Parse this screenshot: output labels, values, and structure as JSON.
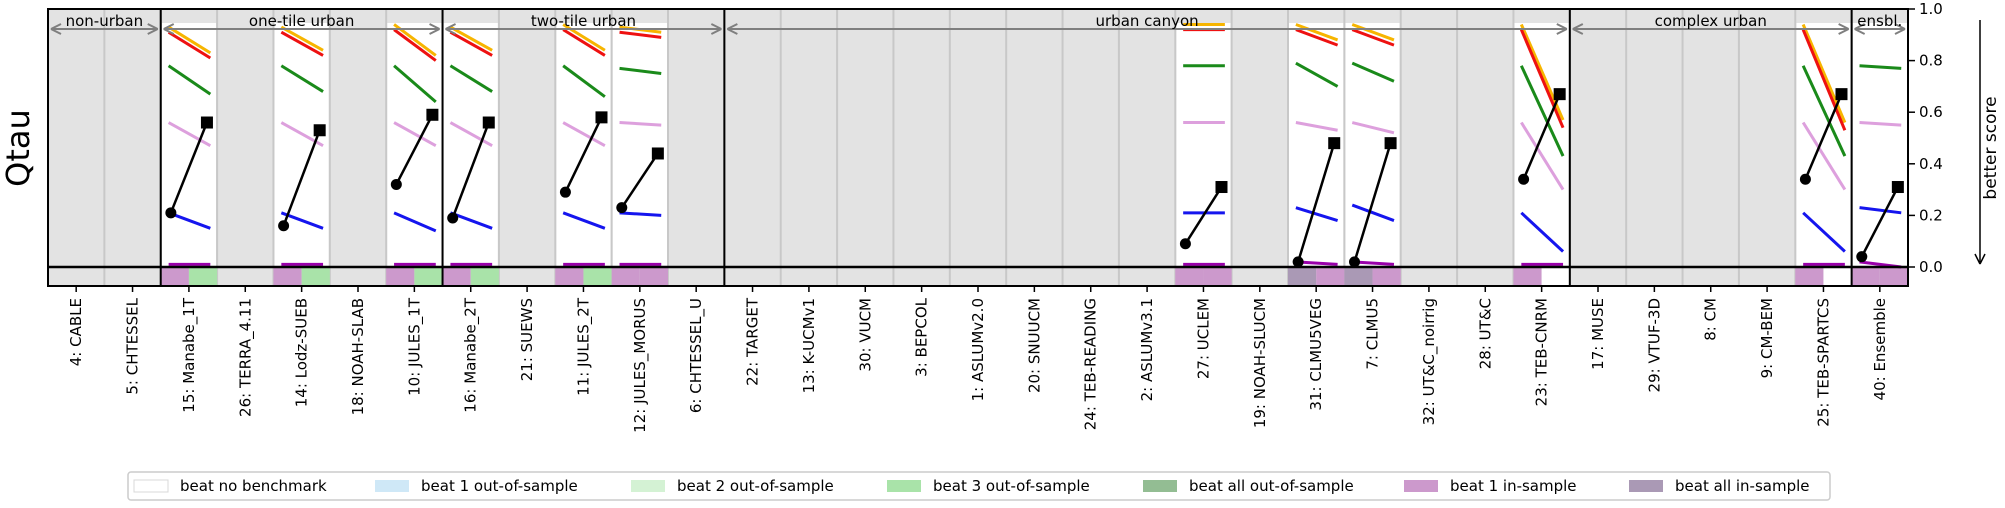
{
  "chart_data": {
    "type": "line",
    "ylabel": "Qtau",
    "right_axis_label": "better score",
    "ylim": [
      -0.08,
      1.0
    ],
    "yticks": [
      "1.0",
      "0.8",
      "0.6",
      "0.4",
      "0.2",
      "0.0"
    ],
    "yticks_values": [
      1.0,
      0.8,
      0.6,
      0.4,
      0.2,
      0.0
    ],
    "groups": [
      {
        "label": "non-urban",
        "start": 0,
        "end": 2
      },
      {
        "label": "one-tile urban",
        "start": 2,
        "end": 7
      },
      {
        "label": "two-tile urban",
        "start": 7,
        "end": 12
      },
      {
        "label": "urban canyon",
        "start": 12,
        "end": 27
      },
      {
        "label": "complex urban",
        "start": 27,
        "end": 32
      },
      {
        "label": "ensbl.",
        "start": 32,
        "end": 33
      }
    ],
    "models": [
      "4: CABLE",
      "5: CHTESSEL",
      "15: Manabe_1T",
      "26: TERRA_4.11",
      "14: Lodz-SUEB",
      "18: NOAH-SLAB",
      "10: JULES_1T",
      "16: Manabe_2T",
      "21: SUEWS",
      "11: JULES_2T",
      "12: JULES_MORUS",
      "6: CHTESSEL_U",
      "22: TARGET",
      "13: K-UCMv1",
      "30: VUCM",
      "3: BEPCOL",
      "1: ASLUMv2.0",
      "20: SNUUCM",
      "24: TEB-READING",
      "2: ASLUMv3.1",
      "27: UCLEM",
      "19: NOAH-SLUCM",
      "31: CLMU5VEG",
      "7: CLMU5",
      "32: UT&C_noirrig",
      "28: UT&C",
      "23: TEB-CNRM",
      "17: MUSE",
      "29: VTUF-3D",
      "8: CM",
      "9: CM-BEM",
      "25: TEB-SPARTCS",
      "40: Ensemble"
    ],
    "highlighted_model_indices": [
      2,
      4,
      6,
      7,
      9,
      10,
      20,
      22,
      23,
      26,
      31,
      32
    ],
    "benchmark_lines": [
      {
        "model_index": 2,
        "lines": [
          {
            "color": "#f7b500",
            "y1": 0.93,
            "y2": 0.83
          },
          {
            "color": "#ee1111",
            "y1": 0.91,
            "y2": 0.81
          },
          {
            "color": "#1a8a1a",
            "y1": 0.78,
            "y2": 0.67
          },
          {
            "color": "#dda0dd",
            "y1": 0.56,
            "y2": 0.47
          },
          {
            "color": "#1515ee",
            "y1": 0.21,
            "y2": 0.15
          },
          {
            "color": "#9900aa",
            "y1": 0.01,
            "y2": 0.01
          }
        ]
      },
      {
        "model_index": 4,
        "lines": [
          {
            "color": "#f7b500",
            "y1": 0.93,
            "y2": 0.84
          },
          {
            "color": "#ee1111",
            "y1": 0.91,
            "y2": 0.82
          },
          {
            "color": "#1a8a1a",
            "y1": 0.78,
            "y2": 0.68
          },
          {
            "color": "#dda0dd",
            "y1": 0.56,
            "y2": 0.47
          },
          {
            "color": "#1515ee",
            "y1": 0.21,
            "y2": 0.15
          },
          {
            "color": "#9900aa",
            "y1": 0.01,
            "y2": 0.01
          }
        ]
      },
      {
        "model_index": 6,
        "lines": [
          {
            "color": "#f7b500",
            "y1": 0.94,
            "y2": 0.82
          },
          {
            "color": "#ee1111",
            "y1": 0.92,
            "y2": 0.8
          },
          {
            "color": "#1a8a1a",
            "y1": 0.78,
            "y2": 0.64
          },
          {
            "color": "#dda0dd",
            "y1": 0.56,
            "y2": 0.47
          },
          {
            "color": "#1515ee",
            "y1": 0.21,
            "y2": 0.14
          },
          {
            "color": "#9900aa",
            "y1": 0.01,
            "y2": 0.01
          }
        ]
      },
      {
        "model_index": 7,
        "lines": [
          {
            "color": "#f7b500",
            "y1": 0.93,
            "y2": 0.84
          },
          {
            "color": "#ee1111",
            "y1": 0.91,
            "y2": 0.82
          },
          {
            "color": "#1a8a1a",
            "y1": 0.78,
            "y2": 0.68
          },
          {
            "color": "#dda0dd",
            "y1": 0.56,
            "y2": 0.47
          },
          {
            "color": "#1515ee",
            "y1": 0.21,
            "y2": 0.15
          },
          {
            "color": "#9900aa",
            "y1": 0.01,
            "y2": 0.01
          }
        ]
      },
      {
        "model_index": 9,
        "lines": [
          {
            "color": "#f7b500",
            "y1": 0.94,
            "y2": 0.84
          },
          {
            "color": "#ee1111",
            "y1": 0.92,
            "y2": 0.82
          },
          {
            "color": "#1a8a1a",
            "y1": 0.78,
            "y2": 0.66
          },
          {
            "color": "#dda0dd",
            "y1": 0.56,
            "y2": 0.47
          },
          {
            "color": "#1515ee",
            "y1": 0.21,
            "y2": 0.15
          },
          {
            "color": "#9900aa",
            "y1": 0.01,
            "y2": 0.01
          }
        ]
      },
      {
        "model_index": 10,
        "lines": [
          {
            "color": "#f7b500",
            "y1": 0.93,
            "y2": 0.91
          },
          {
            "color": "#ee1111",
            "y1": 0.91,
            "y2": 0.89
          },
          {
            "color": "#1a8a1a",
            "y1": 0.77,
            "y2": 0.75
          },
          {
            "color": "#dda0dd",
            "y1": 0.56,
            "y2": 0.55
          },
          {
            "color": "#1515ee",
            "y1": 0.21,
            "y2": 0.2
          },
          {
            "color": "#9900aa",
            "y1": 0.01,
            "y2": 0.01
          }
        ]
      },
      {
        "model_index": 20,
        "lines": [
          {
            "color": "#f7b500",
            "y1": 0.94,
            "y2": 0.94
          },
          {
            "color": "#ee1111",
            "y1": 0.92,
            "y2": 0.92
          },
          {
            "color": "#1a8a1a",
            "y1": 0.78,
            "y2": 0.78
          },
          {
            "color": "#dda0dd",
            "y1": 0.56,
            "y2": 0.56
          },
          {
            "color": "#1515ee",
            "y1": 0.21,
            "y2": 0.21
          },
          {
            "color": "#9900aa",
            "y1": 0.01,
            "y2": 0.01
          }
        ]
      },
      {
        "model_index": 22,
        "lines": [
          {
            "color": "#f7b500",
            "y1": 0.94,
            "y2": 0.88
          },
          {
            "color": "#ee1111",
            "y1": 0.92,
            "y2": 0.86
          },
          {
            "color": "#1a8a1a",
            "y1": 0.79,
            "y2": 0.7
          },
          {
            "color": "#dda0dd",
            "y1": 0.56,
            "y2": 0.53
          },
          {
            "color": "#1515ee",
            "y1": 0.23,
            "y2": 0.18
          },
          {
            "color": "#9900aa",
            "y1": 0.02,
            "y2": 0.01
          }
        ]
      },
      {
        "model_index": 23,
        "lines": [
          {
            "color": "#f7b500",
            "y1": 0.94,
            "y2": 0.88
          },
          {
            "color": "#ee1111",
            "y1": 0.92,
            "y2": 0.86
          },
          {
            "color": "#1a8a1a",
            "y1": 0.79,
            "y2": 0.72
          },
          {
            "color": "#dda0dd",
            "y1": 0.56,
            "y2": 0.52
          },
          {
            "color": "#1515ee",
            "y1": 0.24,
            "y2": 0.18
          },
          {
            "color": "#9900aa",
            "y1": 0.02,
            "y2": 0.01
          }
        ]
      },
      {
        "model_index": 26,
        "lines": [
          {
            "color": "#f7b500",
            "y1": 0.94,
            "y2": 0.57
          },
          {
            "color": "#ee1111",
            "y1": 0.92,
            "y2": 0.54
          },
          {
            "color": "#1a8a1a",
            "y1": 0.78,
            "y2": 0.43
          },
          {
            "color": "#dda0dd",
            "y1": 0.56,
            "y2": 0.3
          },
          {
            "color": "#1515ee",
            "y1": 0.21,
            "y2": 0.06
          },
          {
            "color": "#9900aa",
            "y1": 0.01,
            "y2": 0.01
          }
        ]
      },
      {
        "model_index": 31,
        "lines": [
          {
            "color": "#f7b500",
            "y1": 0.94,
            "y2": 0.56
          },
          {
            "color": "#ee1111",
            "y1": 0.92,
            "y2": 0.53
          },
          {
            "color": "#1a8a1a",
            "y1": 0.78,
            "y2": 0.43
          },
          {
            "color": "#dda0dd",
            "y1": 0.56,
            "y2": 0.3
          },
          {
            "color": "#1515ee",
            "y1": 0.21,
            "y2": 0.06
          },
          {
            "color": "#9900aa",
            "y1": 0.01,
            "y2": 0.01
          }
        ]
      },
      {
        "model_index": 32,
        "lines": [
          {
            "color": "#1a8a1a",
            "y1": 0.78,
            "y2": 0.77
          },
          {
            "color": "#dda0dd",
            "y1": 0.56,
            "y2": 0.55
          },
          {
            "color": "#1515ee",
            "y1": 0.23,
            "y2": 0.21
          },
          {
            "color": "#9900aa",
            "y1": 0.02,
            "y2": 0.0
          }
        ]
      }
    ],
    "model_scores": [
      {
        "model_index": 2,
        "circle": 0.21,
        "square": 0.56
      },
      {
        "model_index": 4,
        "circle": 0.16,
        "square": 0.53
      },
      {
        "model_index": 6,
        "circle": 0.32,
        "square": 0.59
      },
      {
        "model_index": 7,
        "circle": 0.19,
        "square": 0.56
      },
      {
        "model_index": 9,
        "circle": 0.29,
        "square": 0.58
      },
      {
        "model_index": 10,
        "circle": 0.23,
        "square": 0.44
      },
      {
        "model_index": 20,
        "circle": 0.09,
        "square": 0.31
      },
      {
        "model_index": 22,
        "circle": 0.02,
        "square": 0.48
      },
      {
        "model_index": 23,
        "circle": 0.02,
        "square": 0.48
      },
      {
        "model_index": 26,
        "circle": 0.34,
        "square": 0.67
      },
      {
        "model_index": 31,
        "circle": 0.34,
        "square": 0.67
      },
      {
        "model_index": 32,
        "circle": 0.04,
        "square": 0.31
      }
    ],
    "category_strip": [
      {
        "model_index": 2,
        "halves": [
          "beat 1 in-sample",
          "beat 3 out-of-sample"
        ]
      },
      {
        "model_index": 4,
        "halves": [
          "beat 1 in-sample",
          "beat 3 out-of-sample"
        ]
      },
      {
        "model_index": 6,
        "halves": [
          "beat 1 in-sample",
          "beat 3 out-of-sample"
        ]
      },
      {
        "model_index": 7,
        "halves": [
          "beat 1 in-sample",
          "beat 3 out-of-sample"
        ]
      },
      {
        "model_index": 9,
        "halves": [
          "beat 1 in-sample",
          "beat 3 out-of-sample"
        ]
      },
      {
        "model_index": 10,
        "halves": [
          "beat 1 in-sample",
          "beat 1 in-sample"
        ]
      },
      {
        "model_index": 20,
        "halves": [
          "beat 1 in-sample",
          "beat 1 in-sample"
        ]
      },
      {
        "model_index": 22,
        "halves": [
          "beat all in-sample",
          "beat 1 in-sample"
        ]
      },
      {
        "model_index": 23,
        "halves": [
          "beat all in-sample",
          "beat 1 in-sample"
        ]
      },
      {
        "model_index": 26,
        "halves": [
          "beat 1 in-sample",
          "beat no benchmark"
        ]
      },
      {
        "model_index": 31,
        "halves": [
          "beat 1 in-sample",
          "beat no benchmark"
        ]
      },
      {
        "model_index": 32,
        "halves": [
          "beat 1 in-sample",
          "beat 1 in-sample"
        ]
      }
    ],
    "legend": [
      {
        "label": "beat no benchmark",
        "color": "#ffffff"
      },
      {
        "label": "beat 1 out-of-sample",
        "color": "#cfe8f7"
      },
      {
        "label": "beat 2 out-of-sample",
        "color": "#d4f2d4"
      },
      {
        "label": "beat 3 out-of-sample",
        "color": "#a9e3a9"
      },
      {
        "label": "beat all out-of-sample",
        "color": "#93bd93"
      },
      {
        "label": "beat 1 in-sample",
        "color": "#cc99cc"
      },
      {
        "label": "beat all in-sample",
        "color": "#aa99b5"
      }
    ],
    "legend_placement": "bottom-center",
    "grid": false
  }
}
